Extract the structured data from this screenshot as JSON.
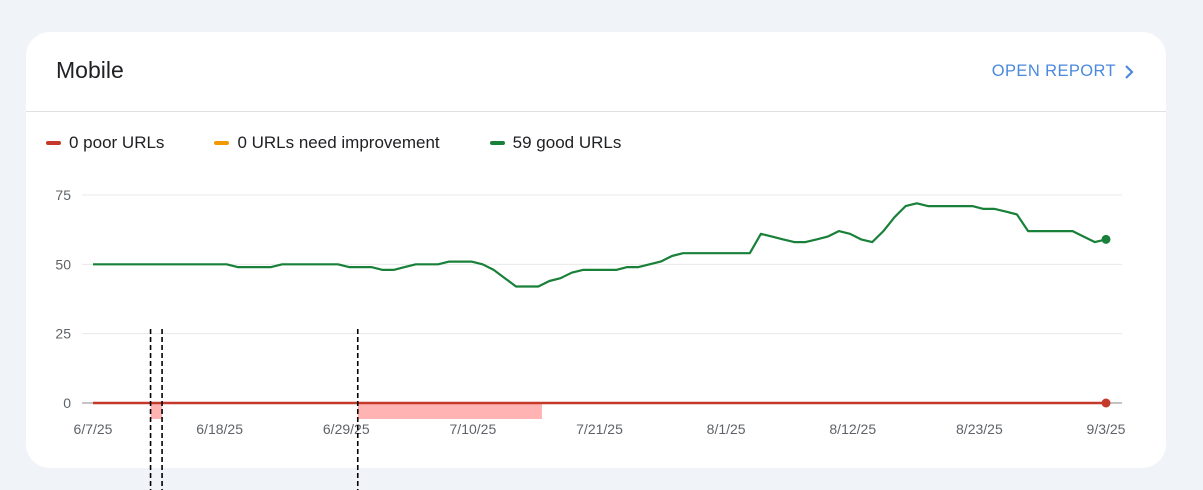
{
  "card": {
    "title": "Mobile",
    "open_report_label": "OPEN REPORT"
  },
  "legend": [
    {
      "label": "0 poor URLs",
      "color": "#c5392a"
    },
    {
      "label": "0 URLs need improvement",
      "color": "#f29900"
    },
    {
      "label": "59 good URLs",
      "color": "#188038"
    }
  ],
  "colors": {
    "poor": "#c5392a",
    "good": "#188038",
    "annotation_band": "#ffb3b3",
    "link": "#4a89dc"
  },
  "chart_data": {
    "type": "line",
    "ylim": [
      0,
      75
    ],
    "y_ticks": [
      0,
      25,
      50,
      75
    ],
    "x_tick_labels": [
      "6/7/25",
      "6/18/25",
      "6/29/25",
      "7/10/25",
      "7/21/25",
      "8/1/25",
      "8/12/25",
      "8/23/25",
      "9/3/25"
    ],
    "x_start": "6/7/25",
    "x_end": "9/3/25",
    "annotation_lines": [
      "6/12/25",
      "6/13/25",
      "6/30/25"
    ],
    "annotation_bands": [
      {
        "from": "6/12/25",
        "to": "6/13/25"
      },
      {
        "from": "6/30/25",
        "to": "7/16/25"
      }
    ],
    "series": [
      {
        "name": "good URLs",
        "values": [
          50,
          50,
          50,
          50,
          50,
          50,
          50,
          50,
          50,
          50,
          50,
          50,
          50,
          49,
          49,
          49,
          49,
          50,
          50,
          50,
          50,
          50,
          50,
          49,
          49,
          49,
          48,
          48,
          49,
          50,
          50,
          50,
          51,
          51,
          51,
          50,
          48,
          45,
          42,
          42,
          42,
          44,
          45,
          47,
          48,
          48,
          48,
          48,
          49,
          49,
          50,
          51,
          53,
          54,
          54,
          54,
          54,
          54,
          54,
          54,
          61,
          60,
          59,
          58,
          58,
          59,
          60,
          62,
          61,
          59,
          58,
          62,
          67,
          71,
          72,
          71,
          71,
          71,
          71,
          71,
          70,
          70,
          69,
          68,
          62,
          62,
          62,
          62,
          62,
          60,
          58,
          59
        ]
      },
      {
        "name": "poor URLs",
        "values": [
          0,
          0,
          0,
          0,
          0,
          0,
          0,
          0,
          0,
          0,
          0,
          0,
          0,
          0,
          0,
          0,
          0,
          0,
          0,
          0,
          0,
          0,
          0,
          0,
          0,
          0,
          0,
          0,
          0,
          0,
          0,
          0,
          0,
          0,
          0,
          0,
          0,
          0,
          0,
          0,
          0,
          0,
          0,
          0,
          0,
          0,
          0,
          0,
          0,
          0,
          0,
          0,
          0,
          0,
          0,
          0,
          0,
          0,
          0,
          0,
          0,
          0,
          0,
          0,
          0,
          0,
          0,
          0,
          0,
          0,
          0,
          0,
          0,
          0,
          0,
          0,
          0,
          0,
          0,
          0,
          0,
          0,
          0,
          0,
          0,
          0,
          0,
          0,
          0,
          0,
          0,
          0
        ]
      }
    ]
  }
}
